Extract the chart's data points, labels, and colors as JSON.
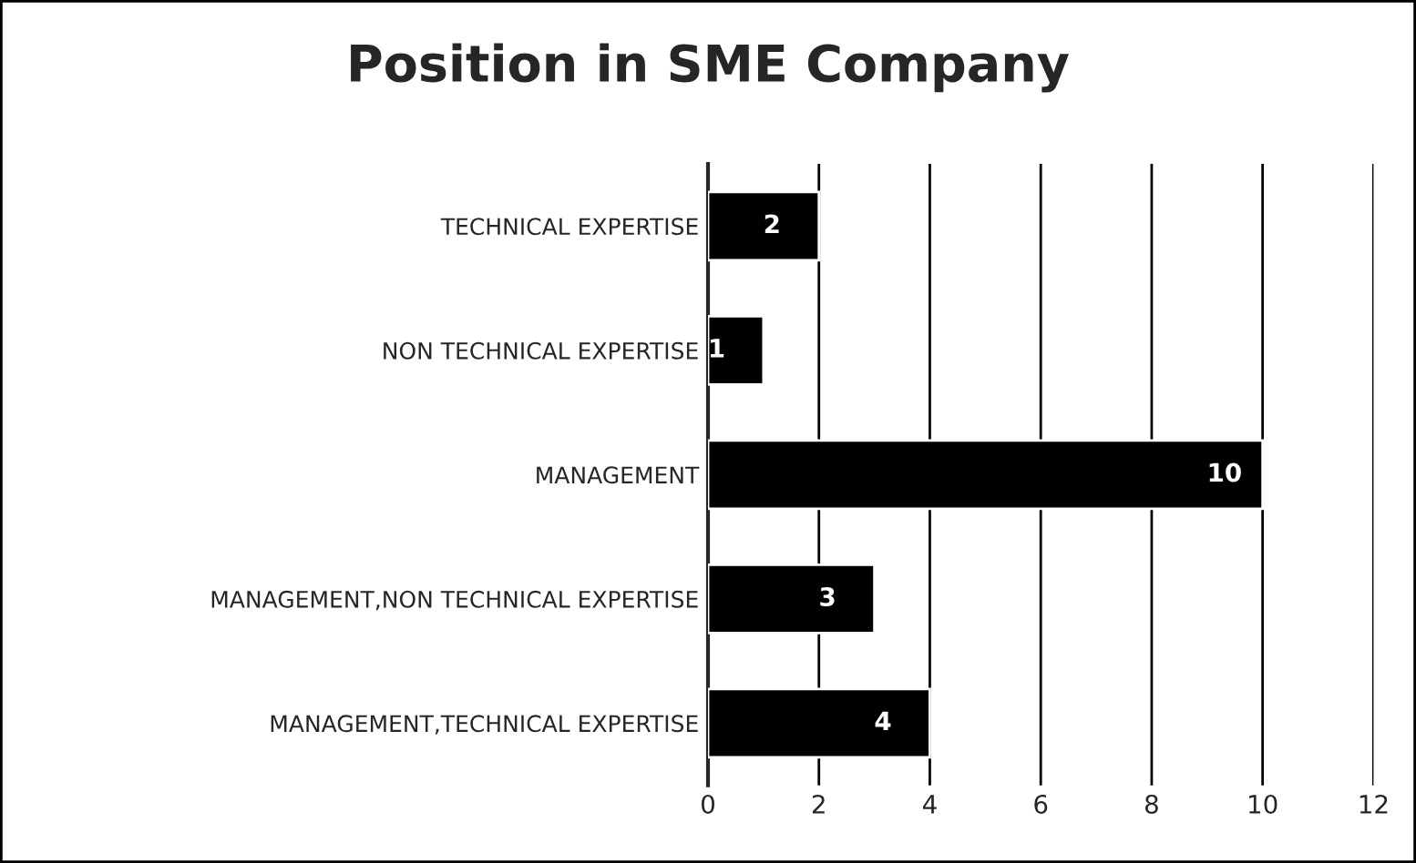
{
  "chart_data": {
    "type": "bar",
    "orientation": "horizontal",
    "title": "Position in SME Company",
    "categories": [
      "TECHNICAL EXPERTISE",
      "NON TECHNICAL EXPERTISE",
      "MANAGEMENT",
      "MANAGEMENT,NON TECHNICAL EXPERTISE",
      "MANAGEMENT,TECHNICAL EXPERTISE"
    ],
    "values": [
      2,
      1,
      10,
      3,
      4
    ],
    "color": "#000000",
    "data_labels": true,
    "xlim": [
      0,
      12
    ],
    "xticks": [
      0,
      2,
      4,
      6,
      8,
      10,
      12
    ],
    "grid": "x"
  }
}
